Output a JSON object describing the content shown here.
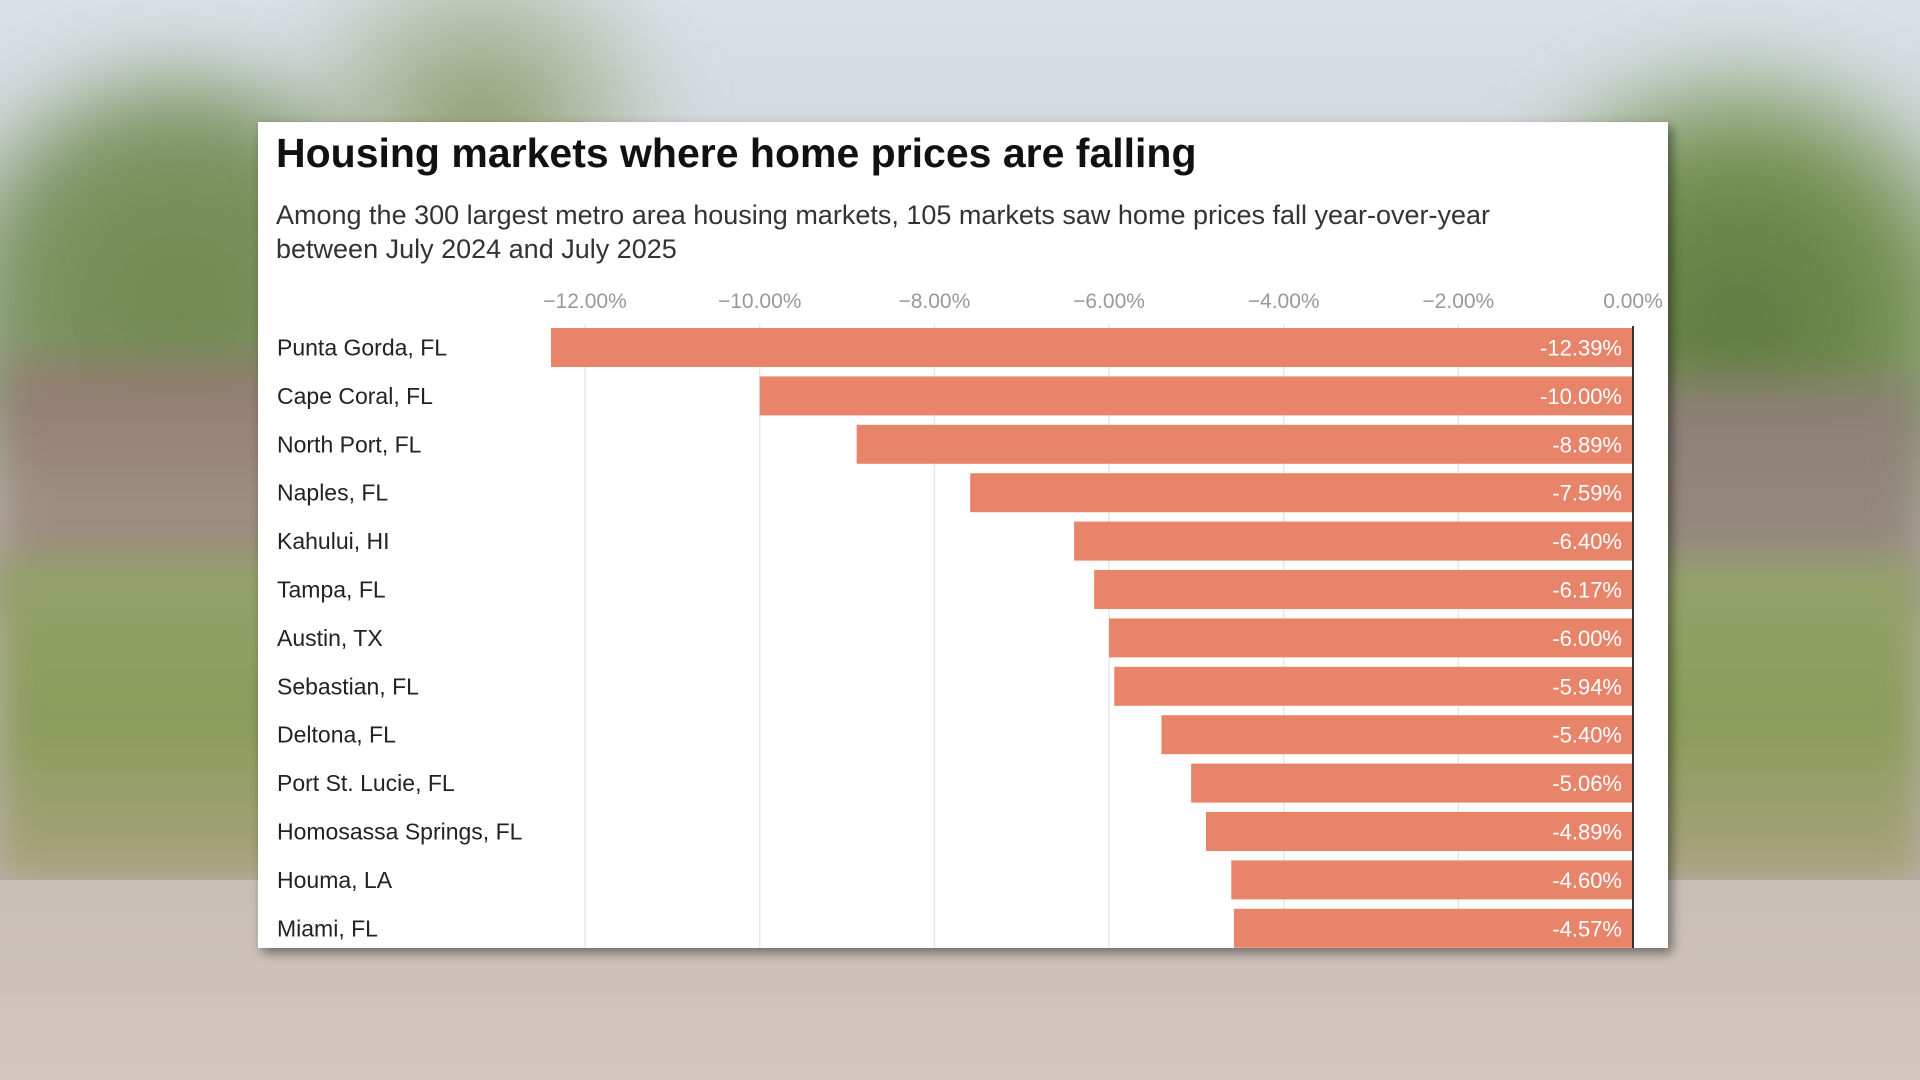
{
  "chart_data": {
    "type": "bar",
    "orientation": "horizontal",
    "title": "Housing markets where home prices are falling",
    "subtitle": "Among the 300 largest metro area housing markets, 105 markets saw home prices fall year-over-year between July 2024 and July 2025",
    "categories": [
      "Punta Gorda, FL",
      "Cape Coral, FL",
      "North Port, FL",
      "Naples, FL",
      "Kahului, HI",
      "Tampa, FL",
      "Austin, TX",
      "Sebastian, FL",
      "Deltona, FL",
      "Port St. Lucie, FL",
      "Homosassa Springs, FL",
      "Houma, LA",
      "Miami, FL"
    ],
    "values": [
      -12.39,
      -10.0,
      -8.89,
      -7.59,
      -6.4,
      -6.17,
      -6.0,
      -5.94,
      -5.4,
      -5.06,
      -4.89,
      -4.6,
      -4.57
    ],
    "value_labels": [
      "-12.39%",
      "-10.00%",
      "-8.89%",
      "-7.59%",
      "-6.40%",
      "-6.17%",
      "-6.00%",
      "-5.94%",
      "-5.40%",
      "-5.06%",
      "-4.89%",
      "-4.60%",
      "-4.57%"
    ],
    "x_ticks": [
      -12,
      -10,
      -8,
      -6,
      -4,
      -2,
      0
    ],
    "x_tick_labels": [
      "−12.00%",
      "−10.00%",
      "−8.00%",
      "−6.00%",
      "−4.00%",
      "−2.00%",
      "0.00%"
    ],
    "xlim": [
      -12.39,
      0
    ],
    "xlabel": "",
    "ylabel": "",
    "axis_position": "top",
    "grid": true,
    "bar_color": "#e8846a",
    "gridline_color": "#e6e6e6",
    "zero_line_color": "#333333"
  }
}
